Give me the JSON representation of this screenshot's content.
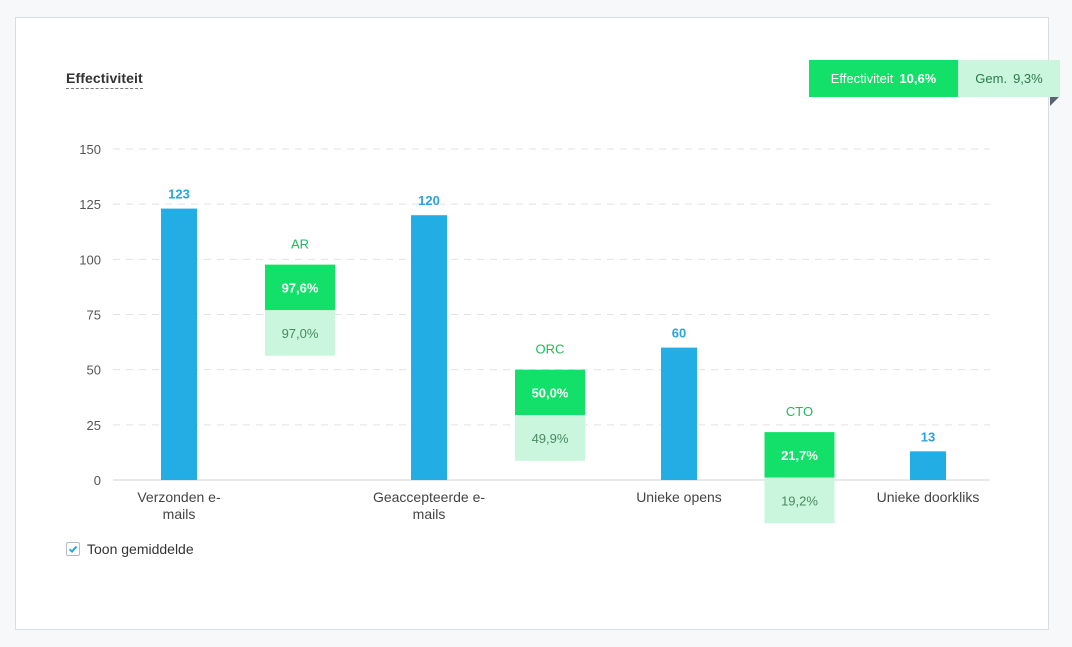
{
  "panel": {
    "title": "Effectiviteit",
    "effectiveness_label": "Effectiviteit",
    "effectiveness_value": "10,6%",
    "average_label": "Gem.",
    "average_value": "9,3%",
    "show_average_label": "Toon gemiddelde",
    "show_average_checked": true
  },
  "colors": {
    "bar": "#22ade5",
    "rate": "#12e069",
    "rate_avg": "#c9f6dc",
    "value_text": "#2aa4dc"
  },
  "chart_data": {
    "type": "bar",
    "ylim": [
      0,
      150
    ],
    "yticks": [
      0,
      25,
      50,
      75,
      100,
      125,
      150
    ],
    "grid": true,
    "categories": [
      [
        "Verzonden e-",
        "mails"
      ],
      [
        "Geaccepteerde e-",
        "mails"
      ],
      [
        "Unieke opens"
      ],
      [
        "Unieke doorkliks"
      ]
    ],
    "values": [
      123,
      120,
      60,
      13
    ],
    "value_labels": [
      "123",
      "120",
      "60",
      "13"
    ],
    "rates": [
      {
        "name": "AR",
        "value": 97.6,
        "value_label": "97,6%",
        "avg": 97.0,
        "avg_label": "97,0%"
      },
      {
        "name": "ORC",
        "value": 50.0,
        "value_label": "50,0%",
        "avg": 49.9,
        "avg_label": "49,9%"
      },
      {
        "name": "CTO",
        "value": 21.7,
        "value_label": "21,7%",
        "avg": 19.2,
        "avg_label": "19,2%"
      }
    ]
  }
}
